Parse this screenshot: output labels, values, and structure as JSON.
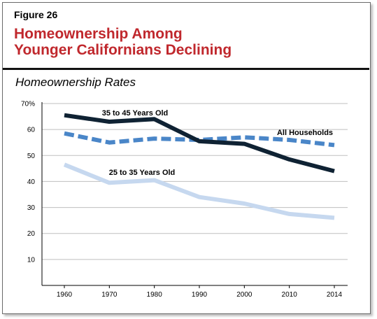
{
  "figure": {
    "label": "Figure 26",
    "title_lines": [
      "Homeownership Among",
      "Younger Californians Declining"
    ],
    "subtitle": "Homeownership Rates"
  },
  "colors": {
    "title": "#c0282d",
    "series_35_45": "#0f2233",
    "series_all": "#4a86c8",
    "series_25_35": "#c6d8ef",
    "grid": "#bfbfbf"
  },
  "chart_data": {
    "type": "line",
    "title": "Homeownership Rates",
    "x": [
      "1960",
      "1970",
      "1980",
      "1990",
      "2000",
      "2010",
      "2014"
    ],
    "y_ticks": [
      "70%",
      "60",
      "50",
      "40",
      "30",
      "20",
      "10"
    ],
    "ylim": [
      0,
      70
    ],
    "grid": true,
    "series": [
      {
        "name": "35 to 45 Years Old",
        "style": "solid-dark",
        "values": [
          65.5,
          63,
          64,
          55.5,
          54.5,
          48.5,
          44
        ]
      },
      {
        "name": "All Households",
        "style": "dashed",
        "values": [
          58.5,
          55,
          56.5,
          56,
          57,
          56,
          54
        ]
      },
      {
        "name": "25 to 35 Years Old",
        "style": "solid-light",
        "values": [
          46.5,
          39.5,
          40.5,
          34,
          31.5,
          27.5,
          26
        ]
      }
    ]
  }
}
